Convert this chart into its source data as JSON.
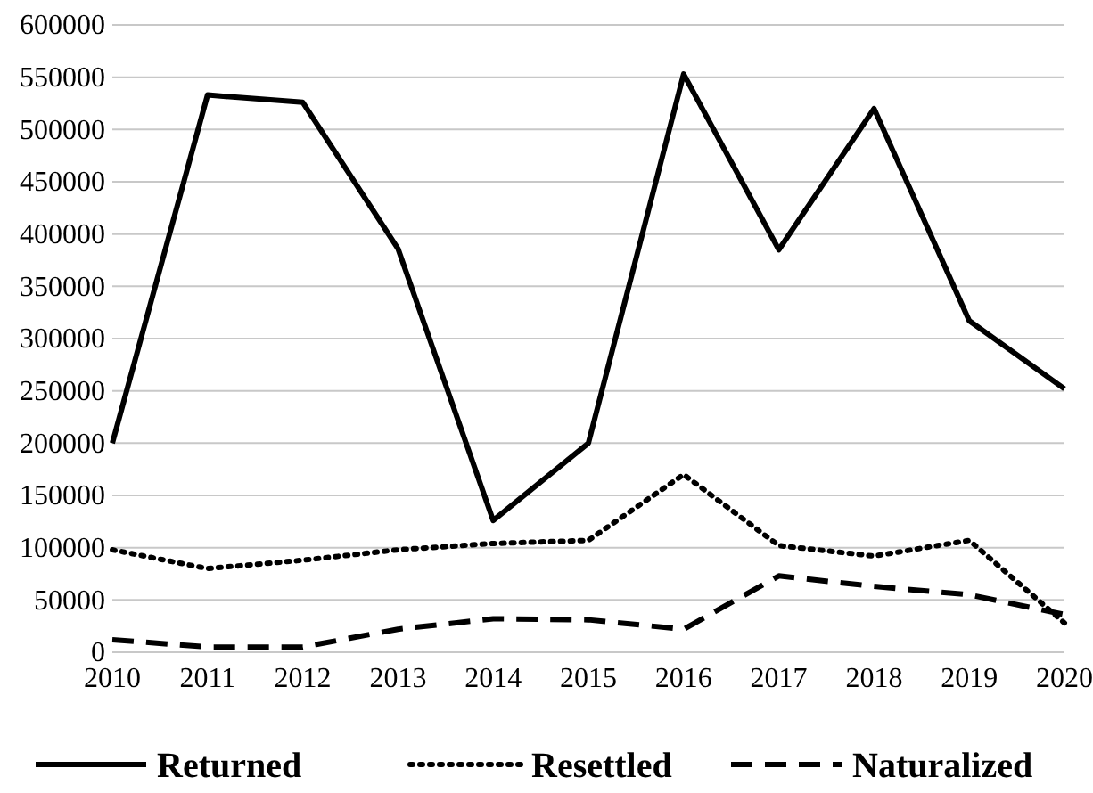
{
  "chart_data": {
    "type": "line",
    "x": [
      2010,
      2011,
      2012,
      2013,
      2014,
      2015,
      2016,
      2017,
      2018,
      2019,
      2020
    ],
    "xlim": [
      2010,
      2020
    ],
    "xticks": [
      2010,
      2011,
      2012,
      2013,
      2014,
      2015,
      2016,
      2017,
      2018,
      2019,
      2020
    ],
    "ylim": [
      0,
      600000
    ],
    "yticks": [
      0,
      50000,
      100000,
      150000,
      200000,
      250000,
      300000,
      350000,
      400000,
      450000,
      500000,
      550000,
      600000
    ],
    "grid": "y",
    "legend": "bottom",
    "marker": "none",
    "series": [
      {
        "name": "Returned",
        "color": "#000000",
        "line_style": "solid",
        "values": [
          200000,
          533000,
          526000,
          386000,
          126000,
          200000,
          553000,
          385000,
          520000,
          317000,
          252000
        ]
      },
      {
        "name": "Resettled",
        "color": "#000000",
        "line_style": "dotted",
        "values": [
          98000,
          80000,
          88000,
          98000,
          104000,
          107000,
          170000,
          102000,
          92000,
          107000,
          28000
        ]
      },
      {
        "name": "Naturalized",
        "color": "#000000",
        "line_style": "dashed",
        "values": [
          12000,
          5000,
          5000,
          22000,
          32000,
          31000,
          22000,
          73000,
          63000,
          55000,
          36000
        ]
      }
    ]
  }
}
